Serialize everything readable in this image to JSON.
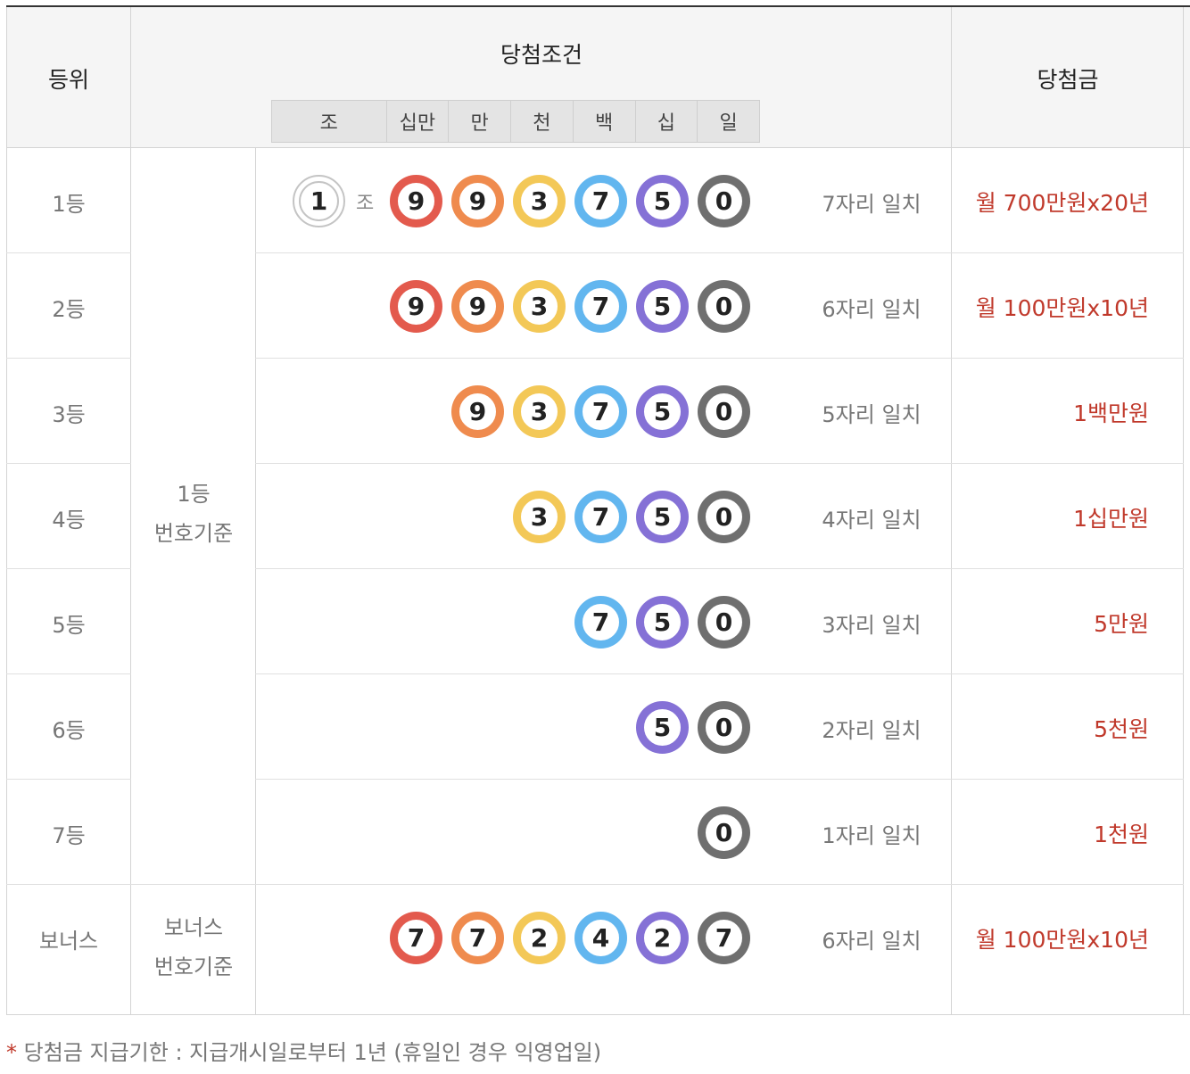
{
  "header": {
    "rank": "등위",
    "condition": "당첨조건",
    "prize": "당첨금",
    "digits": [
      "조",
      "십만",
      "만",
      "천",
      "백",
      "십",
      "일"
    ]
  },
  "colors": {
    "jo": "#c4c4c4",
    "d1": "#e35a4d",
    "d2": "#ef8b4e",
    "d3": "#f3c857",
    "d4": "#62b6ef",
    "d5": "#8571d6",
    "d6": "#6f6f6f",
    "prize_text": "#c0392b"
  },
  "basis_main": [
    "1등",
    "번호기준"
  ],
  "basis_bonus": [
    "보너스",
    "번호기준"
  ],
  "rows": [
    {
      "rank": "1등",
      "jo": "1",
      "jo_label": "조",
      "balls": [
        "9",
        "9",
        "3",
        "7",
        "5",
        "0"
      ],
      "match": "7자리 일치",
      "prize": "월 700만원x20년"
    },
    {
      "rank": "2등",
      "balls": [
        "9",
        "9",
        "3",
        "7",
        "5",
        "0"
      ],
      "match": "6자리 일치",
      "prize": "월 100만원x10년"
    },
    {
      "rank": "3등",
      "balls": [
        "9",
        "3",
        "7",
        "5",
        "0"
      ],
      "match": "5자리 일치",
      "prize": "1백만원"
    },
    {
      "rank": "4등",
      "balls": [
        "3",
        "7",
        "5",
        "0"
      ],
      "match": "4자리 일치",
      "prize": "1십만원"
    },
    {
      "rank": "5등",
      "balls": [
        "7",
        "5",
        "0"
      ],
      "match": "3자리 일치",
      "prize": "5만원"
    },
    {
      "rank": "6등",
      "balls": [
        "5",
        "0"
      ],
      "match": "2자리 일치",
      "prize": "5천원"
    },
    {
      "rank": "7등",
      "balls": [
        "0"
      ],
      "match": "1자리 일치",
      "prize": "1천원"
    },
    {
      "rank": "보너스",
      "balls": [
        "7",
        "7",
        "2",
        "4",
        "2",
        "7"
      ],
      "match": "6자리 일치",
      "prize": "월 100만원x10년"
    }
  ],
  "footnote": {
    "star": "*",
    "text": "당첨금 지급기한 : 지급개시일로부터 1년 (휴일인 경우 익영업일)"
  }
}
